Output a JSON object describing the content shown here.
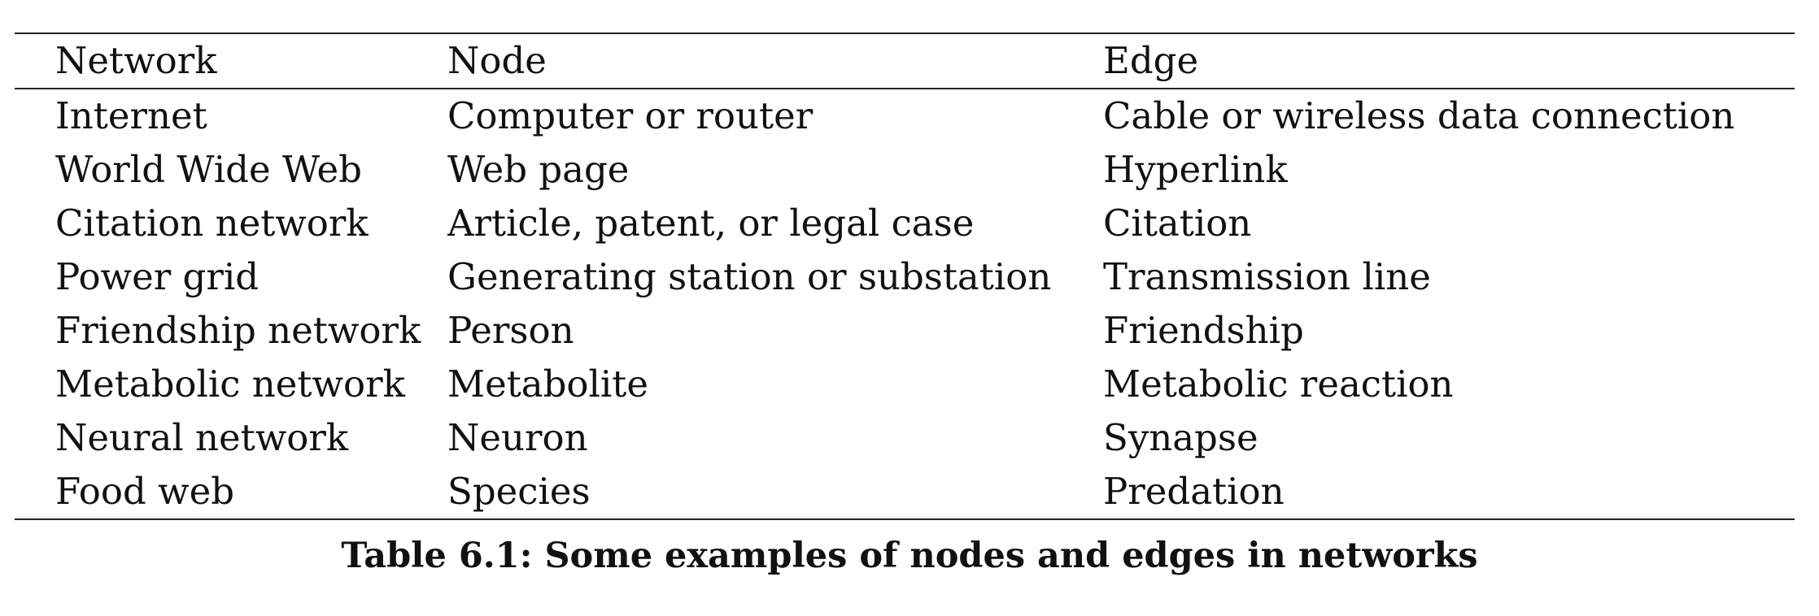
{
  "table": {
    "headers": [
      "Network",
      "Node",
      "Edge"
    ],
    "rows": [
      [
        "Internet",
        "Computer or router",
        "Cable or wireless data connection"
      ],
      [
        "World Wide Web",
        "Web page",
        "Hyperlink"
      ],
      [
        "Citation network",
        "Article, patent, or legal case",
        "Citation"
      ],
      [
        "Power grid",
        "Generating station or substation",
        "Transmission line"
      ],
      [
        "Friendship network",
        "Person",
        "Friendship"
      ],
      [
        "Metabolic network",
        "Metabolite",
        "Metabolic reaction"
      ],
      [
        "Neural network",
        "Neuron",
        "Synapse"
      ],
      [
        "Food web",
        "Species",
        "Predation"
      ]
    ]
  },
  "caption": "Table 6.1: Some examples of nodes and edges in networks"
}
